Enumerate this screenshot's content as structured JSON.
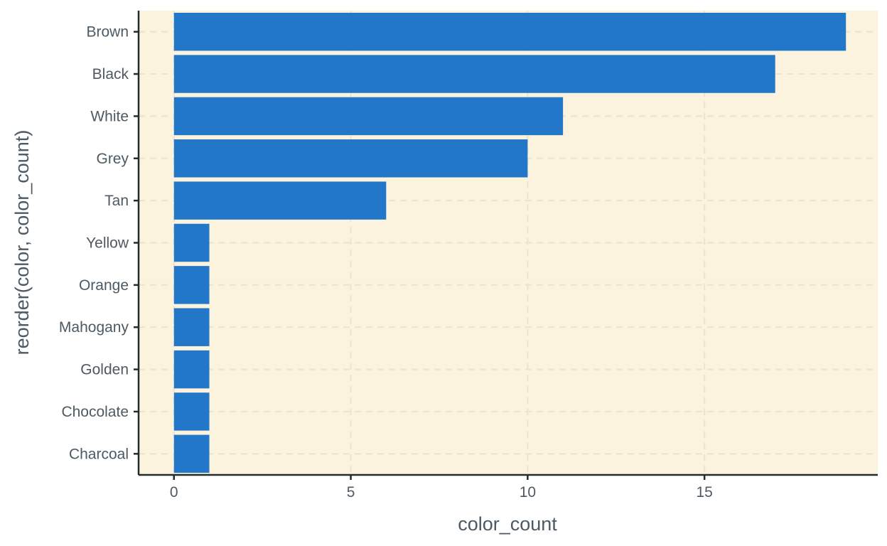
{
  "chart_data": {
    "type": "bar",
    "orientation": "horizontal",
    "title": "",
    "xlabel": "color_count",
    "ylabel": "reorder(color, color_count)",
    "categories": [
      "Brown",
      "Black",
      "White",
      "Grey",
      "Tan",
      "Yellow",
      "Orange",
      "Mahogany",
      "Golden",
      "Chocolate",
      "Charcoal"
    ],
    "values": [
      19,
      17,
      11,
      10,
      6,
      1,
      1,
      1,
      1,
      1,
      1
    ],
    "xlim": [
      -1,
      19.9
    ],
    "x_ticks": [
      "0",
      "5",
      "10",
      "15"
    ],
    "grid": true,
    "legend": "none",
    "colors": {
      "bar": "#2277c8",
      "panel_background": "#fbf3de",
      "grid": "#ebe3cf",
      "axis_line": "#1f2d2b",
      "text": "#4d5a63"
    }
  }
}
